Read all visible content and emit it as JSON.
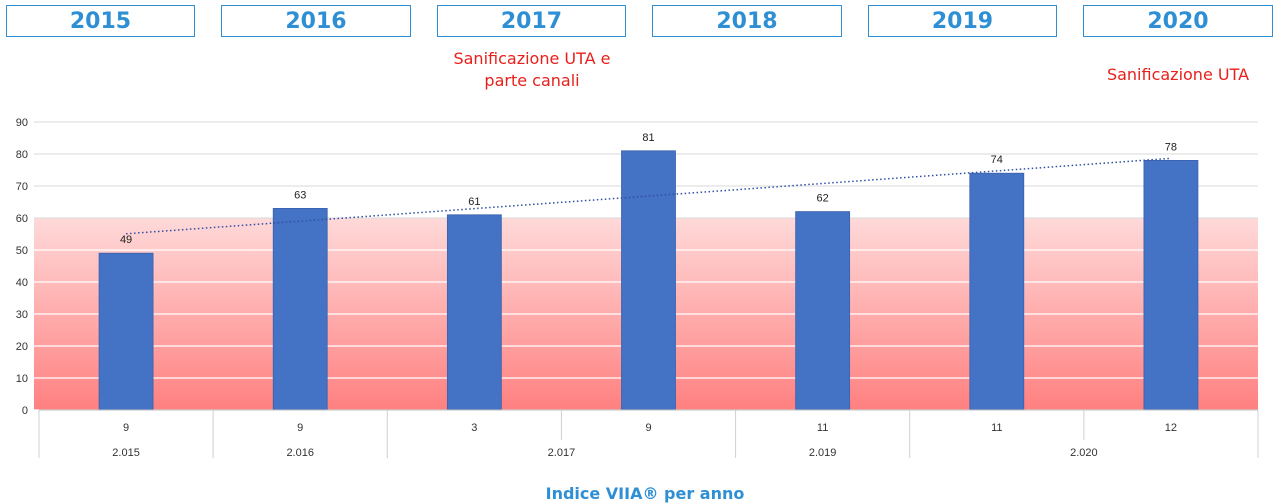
{
  "header": {
    "years": [
      "2015",
      "2016",
      "2017",
      "2018",
      "2019",
      "2020"
    ]
  },
  "notes": {
    "note_2017_line1": "Sanificazione UTA e",
    "note_2017_line2": "parte canali",
    "note_2020": "Sanificazione UTA"
  },
  "footer": {
    "title": "Indice VIIA® per anno"
  },
  "colors": {
    "accent": "#2e8fd4",
    "note_red": "#e8201a",
    "bar": "#4472c4",
    "band_top": "#ffd9d9",
    "band_bottom": "#ff8080",
    "trend": "#2f4fa3"
  },
  "chart_data": {
    "type": "bar",
    "values": [
      49,
      63,
      61,
      81,
      62,
      74,
      78
    ],
    "data_labels": [
      "49",
      "63",
      "61",
      "81",
      "62",
      "74",
      "78"
    ],
    "inner_categories": [
      "9",
      "9",
      "3",
      "9",
      "11",
      "11",
      "12"
    ],
    "outer_groups": [
      {
        "label": "2.015",
        "span": 1
      },
      {
        "label": "2.016",
        "span": 1
      },
      {
        "label": "2.017",
        "span": 2
      },
      {
        "label": "2.019",
        "span": 1
      },
      {
        "label": "2.020",
        "span": 2
      }
    ],
    "ylim": [
      0,
      90
    ],
    "yticks": [
      "0",
      "10",
      "20",
      "30",
      "40",
      "50",
      "60",
      "70",
      "80",
      "90"
    ],
    "threshold_band": [
      0,
      60
    ],
    "trendline": "linear, dotted",
    "grid": true,
    "title": "Indice VIIA® per anno",
    "xlabel": "",
    "ylabel": ""
  }
}
